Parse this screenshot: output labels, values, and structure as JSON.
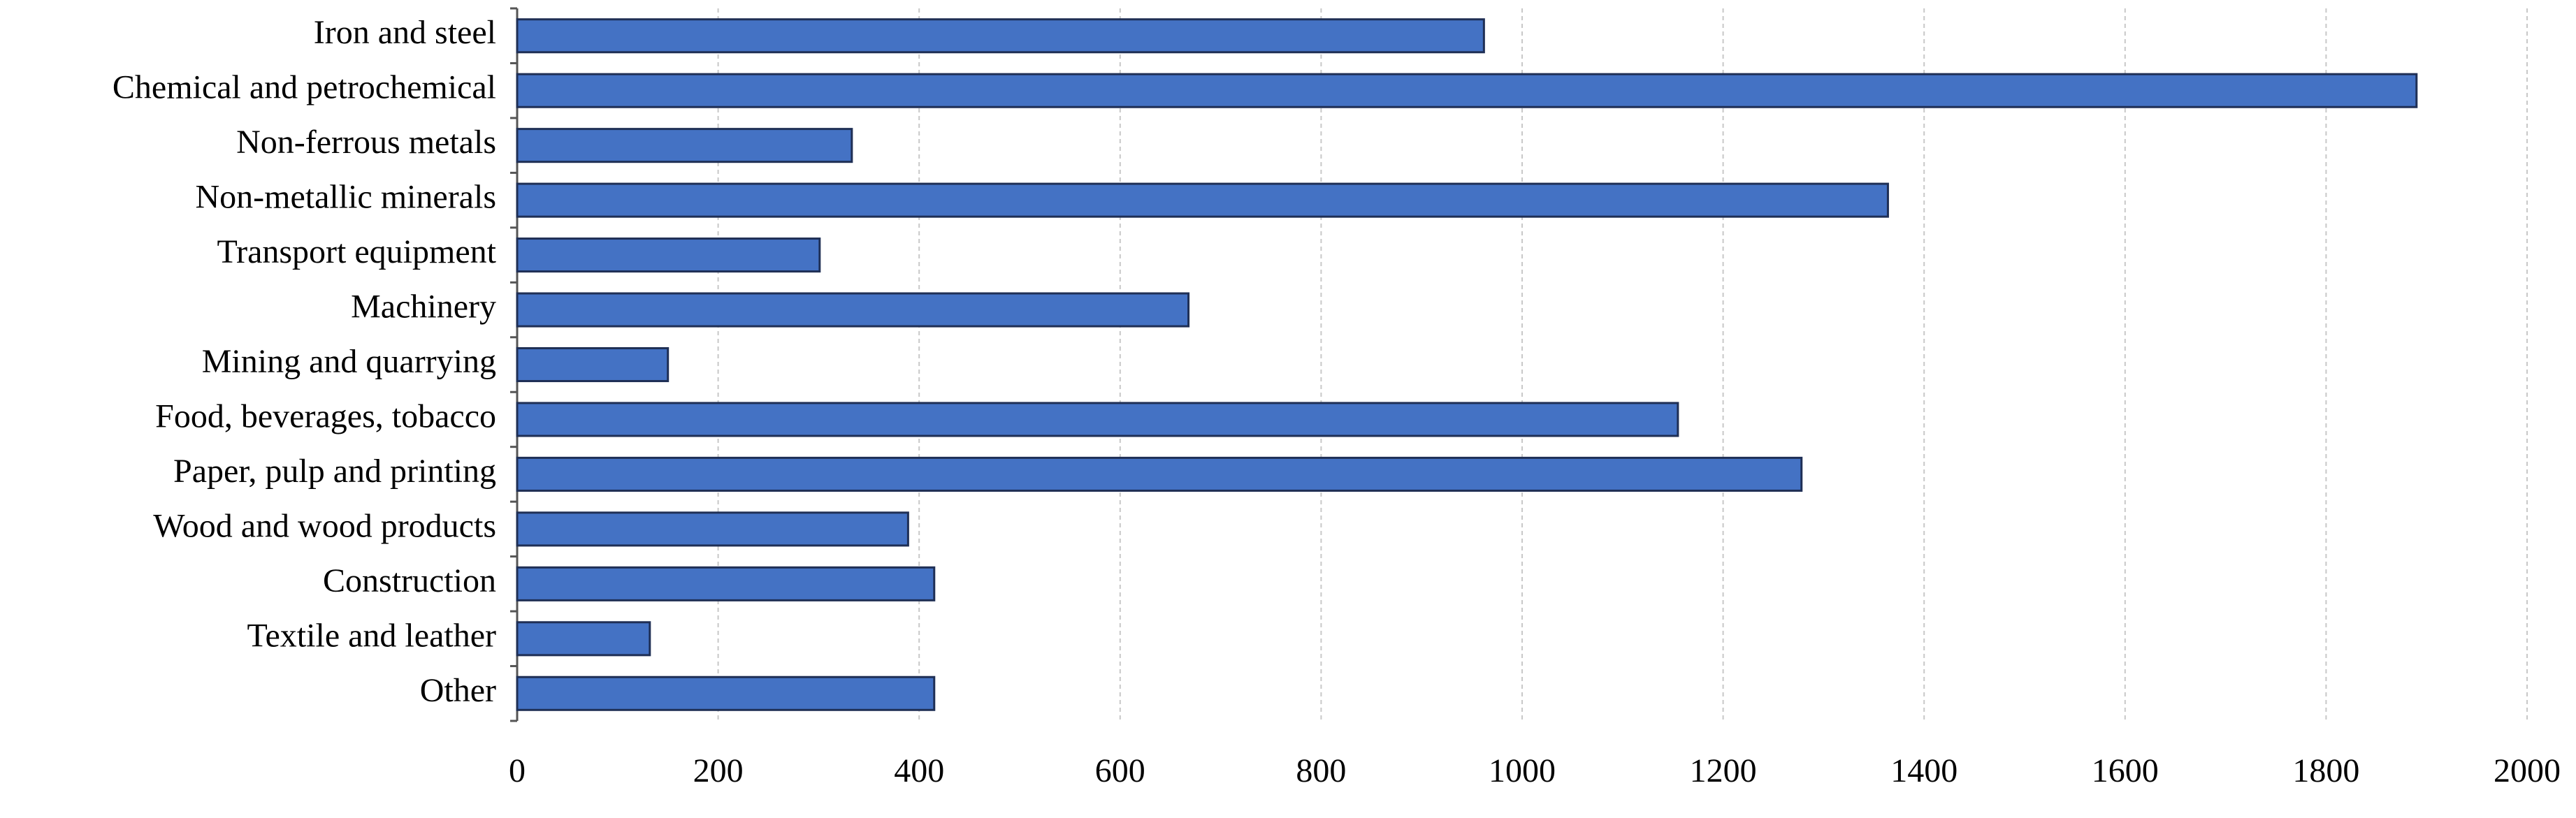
{
  "chart_data": {
    "type": "bar",
    "orientation": "horizontal",
    "categories": [
      "Iron and steel",
      "Chemical and petrochemical",
      "Non-ferrous metals",
      "Non-metallic minerals",
      "Transport equipment",
      "Machinery",
      "Mining and quarrying",
      "Food, beverages, tobacco",
      "Paper, pulp and printing",
      "Wood and wood products",
      "Construction",
      "Textile and leather",
      "Other"
    ],
    "values": [
      962,
      1890,
      333,
      1364,
      301,
      668,
      150,
      1155,
      1278,
      389,
      415,
      132,
      415
    ],
    "color": "#4472c4",
    "xlim": [
      0,
      2000
    ],
    "xticks": [
      0,
      200,
      400,
      600,
      800,
      1000,
      1200,
      1400,
      1600,
      1800,
      2000
    ],
    "grid": true
  }
}
